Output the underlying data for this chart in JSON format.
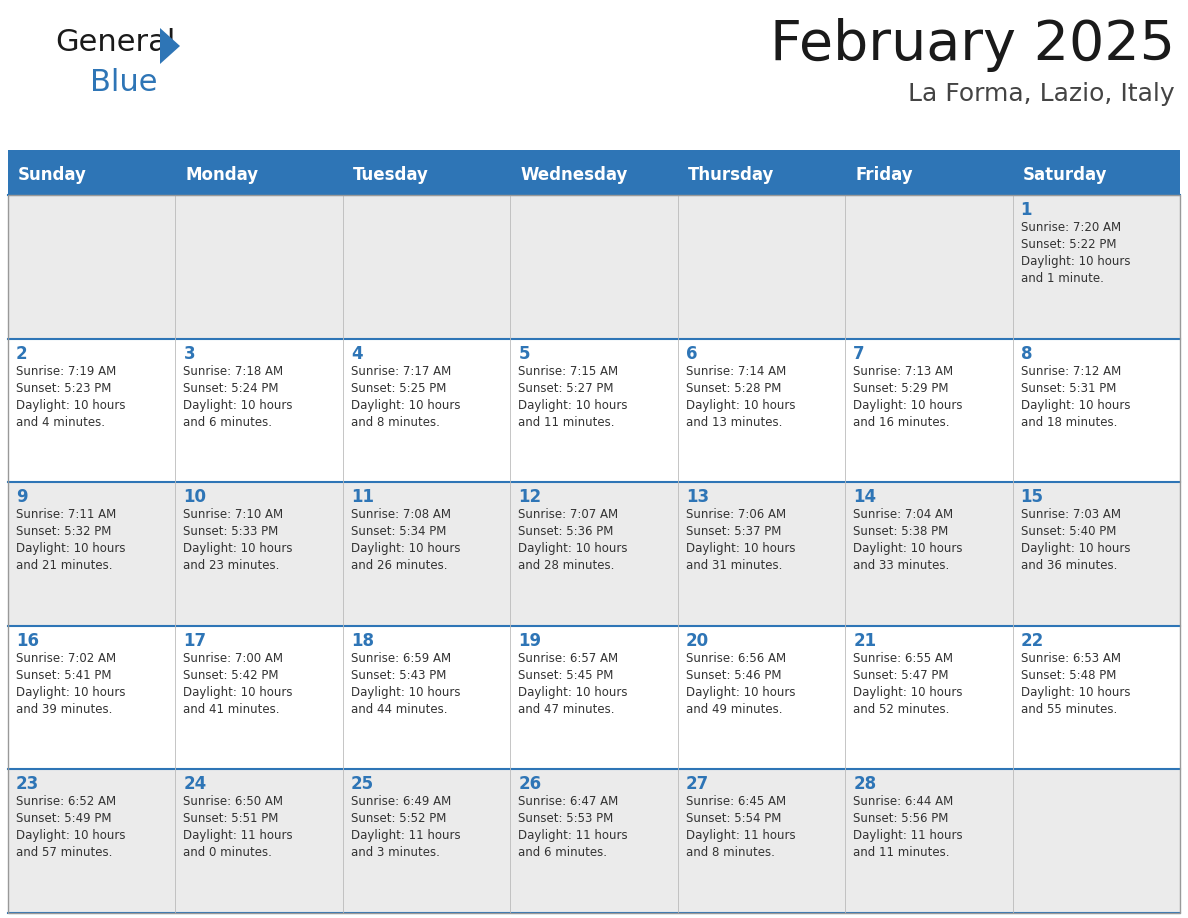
{
  "title": "February 2025",
  "subtitle": "La Forma, Lazio, Italy",
  "header_bg": "#2E75B6",
  "header_text": "#FFFFFF",
  "cell_bg_odd": "#EBEBEB",
  "cell_bg_even": "#FFFFFF",
  "day_headers": [
    "Sunday",
    "Monday",
    "Tuesday",
    "Wednesday",
    "Thursday",
    "Friday",
    "Saturday"
  ],
  "title_color": "#1A1A1A",
  "subtitle_color": "#444444",
  "day_num_color": "#2E75B6",
  "cell_text_color": "#333333",
  "grid_color": "#2E75B6",
  "outer_grid_color": "#AAAAAA",
  "background_color": "#FFFFFF",
  "calendar": [
    [
      null,
      null,
      null,
      null,
      null,
      null,
      1
    ],
    [
      2,
      3,
      4,
      5,
      6,
      7,
      8
    ],
    [
      9,
      10,
      11,
      12,
      13,
      14,
      15
    ],
    [
      16,
      17,
      18,
      19,
      20,
      21,
      22
    ],
    [
      23,
      24,
      25,
      26,
      27,
      28,
      null
    ]
  ],
  "cell_data": {
    "1": {
      "sunrise": "7:20 AM",
      "sunset": "5:22 PM",
      "daylight_line1": "Daylight: 10 hours",
      "daylight_line2": "and 1 minute."
    },
    "2": {
      "sunrise": "7:19 AM",
      "sunset": "5:23 PM",
      "daylight_line1": "Daylight: 10 hours",
      "daylight_line2": "and 4 minutes."
    },
    "3": {
      "sunrise": "7:18 AM",
      "sunset": "5:24 PM",
      "daylight_line1": "Daylight: 10 hours",
      "daylight_line2": "and 6 minutes."
    },
    "4": {
      "sunrise": "7:17 AM",
      "sunset": "5:25 PM",
      "daylight_line1": "Daylight: 10 hours",
      "daylight_line2": "and 8 minutes."
    },
    "5": {
      "sunrise": "7:15 AM",
      "sunset": "5:27 PM",
      "daylight_line1": "Daylight: 10 hours",
      "daylight_line2": "and 11 minutes."
    },
    "6": {
      "sunrise": "7:14 AM",
      "sunset": "5:28 PM",
      "daylight_line1": "Daylight: 10 hours",
      "daylight_line2": "and 13 minutes."
    },
    "7": {
      "sunrise": "7:13 AM",
      "sunset": "5:29 PM",
      "daylight_line1": "Daylight: 10 hours",
      "daylight_line2": "and 16 minutes."
    },
    "8": {
      "sunrise": "7:12 AM",
      "sunset": "5:31 PM",
      "daylight_line1": "Daylight: 10 hours",
      "daylight_line2": "and 18 minutes."
    },
    "9": {
      "sunrise": "7:11 AM",
      "sunset": "5:32 PM",
      "daylight_line1": "Daylight: 10 hours",
      "daylight_line2": "and 21 minutes."
    },
    "10": {
      "sunrise": "7:10 AM",
      "sunset": "5:33 PM",
      "daylight_line1": "Daylight: 10 hours",
      "daylight_line2": "and 23 minutes."
    },
    "11": {
      "sunrise": "7:08 AM",
      "sunset": "5:34 PM",
      "daylight_line1": "Daylight: 10 hours",
      "daylight_line2": "and 26 minutes."
    },
    "12": {
      "sunrise": "7:07 AM",
      "sunset": "5:36 PM",
      "daylight_line1": "Daylight: 10 hours",
      "daylight_line2": "and 28 minutes."
    },
    "13": {
      "sunrise": "7:06 AM",
      "sunset": "5:37 PM",
      "daylight_line1": "Daylight: 10 hours",
      "daylight_line2": "and 31 minutes."
    },
    "14": {
      "sunrise": "7:04 AM",
      "sunset": "5:38 PM",
      "daylight_line1": "Daylight: 10 hours",
      "daylight_line2": "and 33 minutes."
    },
    "15": {
      "sunrise": "7:03 AM",
      "sunset": "5:40 PM",
      "daylight_line1": "Daylight: 10 hours",
      "daylight_line2": "and 36 minutes."
    },
    "16": {
      "sunrise": "7:02 AM",
      "sunset": "5:41 PM",
      "daylight_line1": "Daylight: 10 hours",
      "daylight_line2": "and 39 minutes."
    },
    "17": {
      "sunrise": "7:00 AM",
      "sunset": "5:42 PM",
      "daylight_line1": "Daylight: 10 hours",
      "daylight_line2": "and 41 minutes."
    },
    "18": {
      "sunrise": "6:59 AM",
      "sunset": "5:43 PM",
      "daylight_line1": "Daylight: 10 hours",
      "daylight_line2": "and 44 minutes."
    },
    "19": {
      "sunrise": "6:57 AM",
      "sunset": "5:45 PM",
      "daylight_line1": "Daylight: 10 hours",
      "daylight_line2": "and 47 minutes."
    },
    "20": {
      "sunrise": "6:56 AM",
      "sunset": "5:46 PM",
      "daylight_line1": "Daylight: 10 hours",
      "daylight_line2": "and 49 minutes."
    },
    "21": {
      "sunrise": "6:55 AM",
      "sunset": "5:47 PM",
      "daylight_line1": "Daylight: 10 hours",
      "daylight_line2": "and 52 minutes."
    },
    "22": {
      "sunrise": "6:53 AM",
      "sunset": "5:48 PM",
      "daylight_line1": "Daylight: 10 hours",
      "daylight_line2": "and 55 minutes."
    },
    "23": {
      "sunrise": "6:52 AM",
      "sunset": "5:49 PM",
      "daylight_line1": "Daylight: 10 hours",
      "daylight_line2": "and 57 minutes."
    },
    "24": {
      "sunrise": "6:50 AM",
      "sunset": "5:51 PM",
      "daylight_line1": "Daylight: 11 hours",
      "daylight_line2": "and 0 minutes."
    },
    "25": {
      "sunrise": "6:49 AM",
      "sunset": "5:52 PM",
      "daylight_line1": "Daylight: 11 hours",
      "daylight_line2": "and 3 minutes."
    },
    "26": {
      "sunrise": "6:47 AM",
      "sunset": "5:53 PM",
      "daylight_line1": "Daylight: 11 hours",
      "daylight_line2": "and 6 minutes."
    },
    "27": {
      "sunrise": "6:45 AM",
      "sunset": "5:54 PM",
      "daylight_line1": "Daylight: 11 hours",
      "daylight_line2": "and 8 minutes."
    },
    "28": {
      "sunrise": "6:44 AM",
      "sunset": "5:56 PM",
      "daylight_line1": "Daylight: 11 hours",
      "daylight_line2": "and 11 minutes."
    }
  },
  "logo_general_color": "#1A1A1A",
  "logo_blue_color": "#2E75B6",
  "logo_triangle_color": "#2E75B6"
}
